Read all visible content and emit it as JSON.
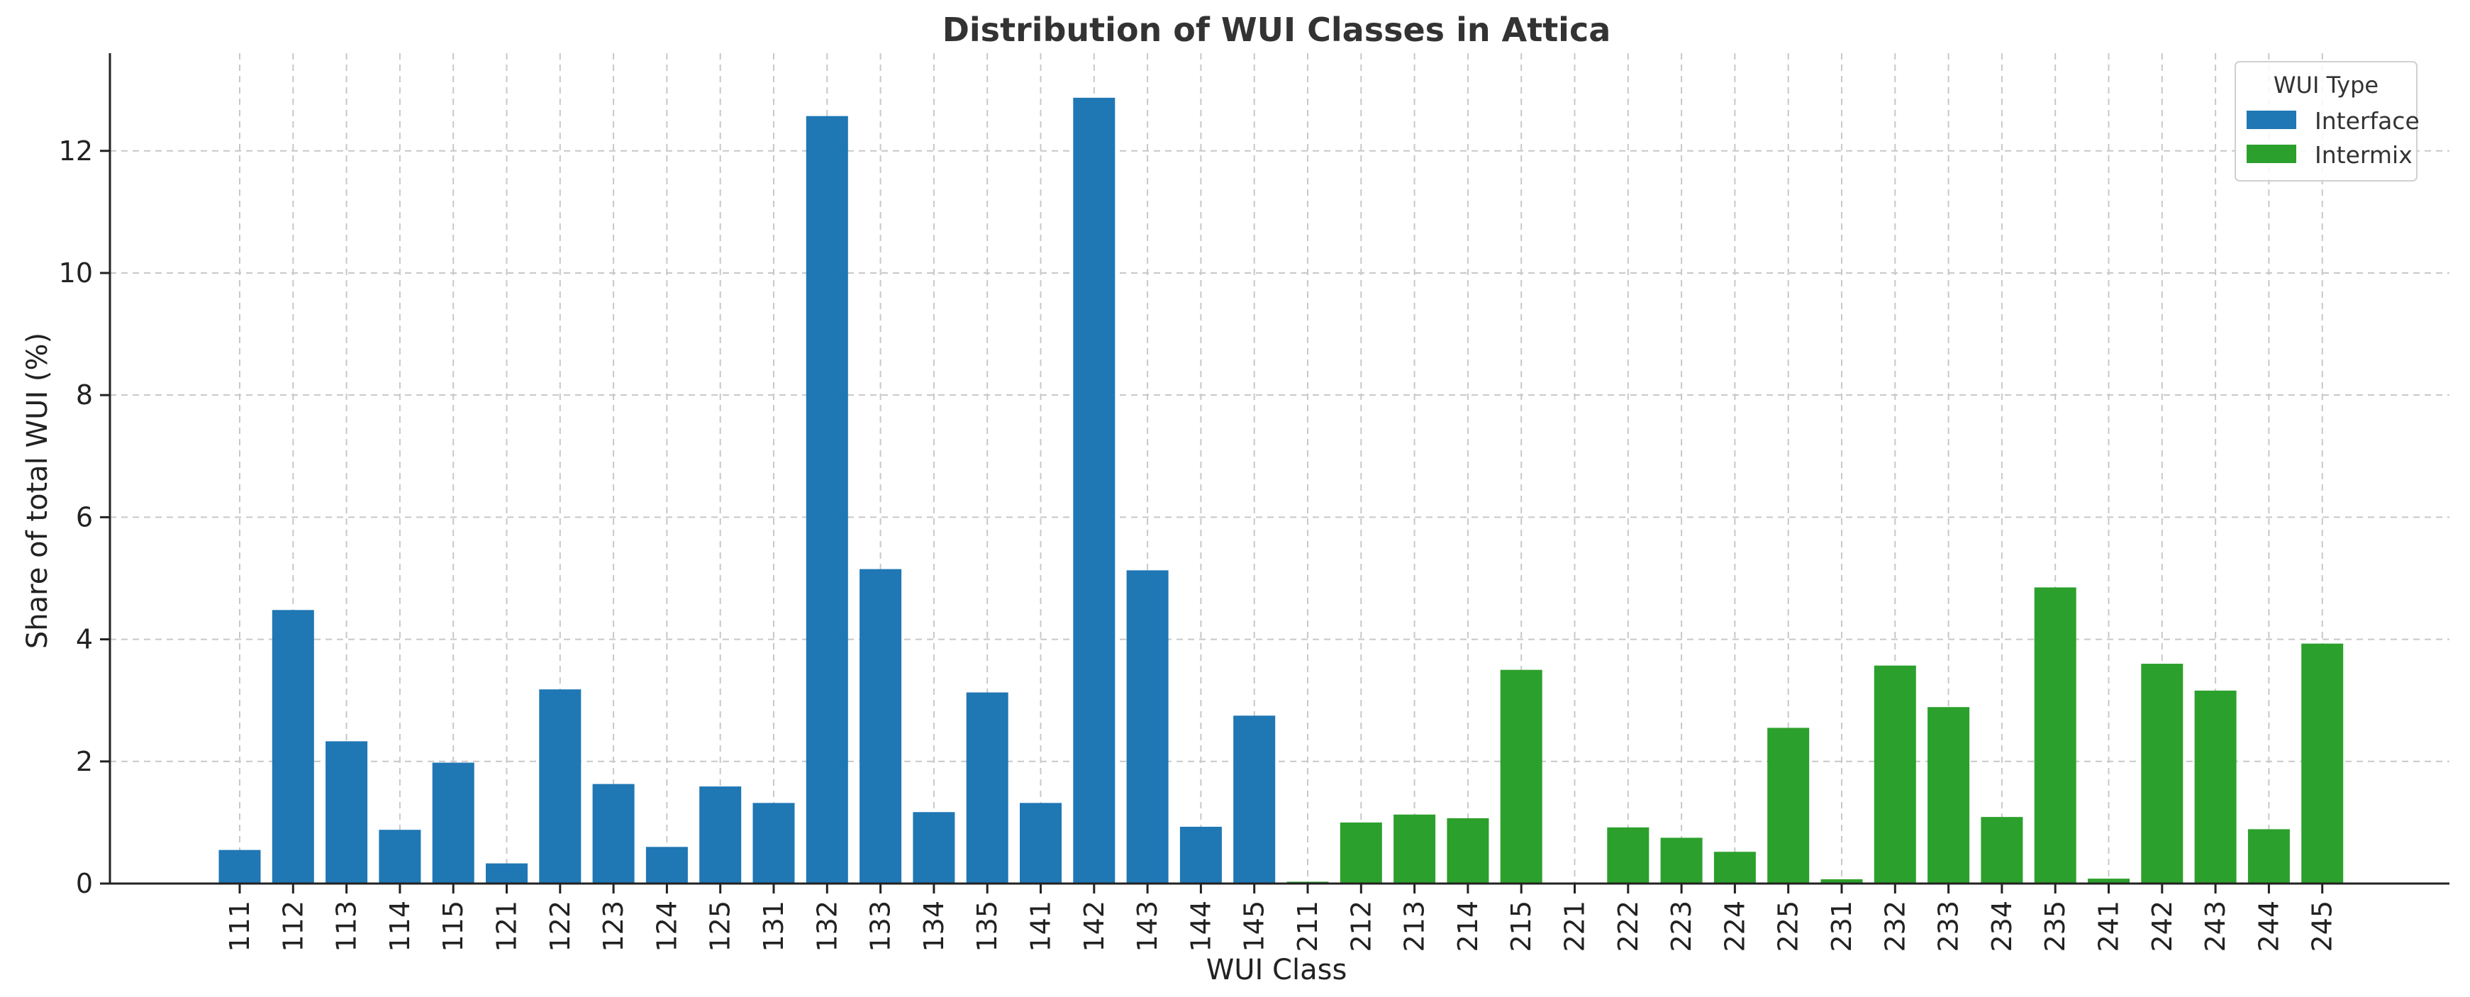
{
  "chart_data": {
    "type": "bar",
    "title": "Distribution of WUI Classes in Attica",
    "xlabel": "WUI Class",
    "ylabel": "Share of total WUI (%)",
    "ylim": [
      0,
      13.6
    ],
    "yticks": [
      0,
      2,
      4,
      6,
      8,
      10,
      12
    ],
    "grid": true,
    "legend": {
      "title": "WUI Type",
      "placement": "top-right"
    },
    "colors": {
      "Interface": "#1f77b4",
      "Intermix": "#2ca02c"
    },
    "series": [
      {
        "name": "Interface",
        "categories": [
          "111",
          "112",
          "113",
          "114",
          "115",
          "121",
          "122",
          "123",
          "124",
          "125",
          "131",
          "132",
          "133",
          "134",
          "135",
          "141",
          "142",
          "143",
          "144",
          "145"
        ],
        "values": [
          0.55,
          4.48,
          2.33,
          0.88,
          1.98,
          0.33,
          3.18,
          1.63,
          0.6,
          1.59,
          1.32,
          12.57,
          5.15,
          1.17,
          3.13,
          1.32,
          12.87,
          5.13,
          0.93,
          2.75
        ]
      },
      {
        "name": "Intermix",
        "categories": [
          "211",
          "212",
          "213",
          "214",
          "215",
          "221",
          "222",
          "223",
          "224",
          "225",
          "231",
          "232",
          "233",
          "234",
          "235",
          "241",
          "242",
          "243",
          "244",
          "245"
        ],
        "values": [
          0.03,
          1.0,
          1.13,
          1.07,
          3.5,
          0.0,
          0.92,
          0.75,
          0.52,
          2.55,
          0.07,
          3.57,
          2.89,
          1.09,
          4.85,
          0.08,
          3.6,
          3.16,
          0.89,
          3.93
        ]
      }
    ]
  }
}
